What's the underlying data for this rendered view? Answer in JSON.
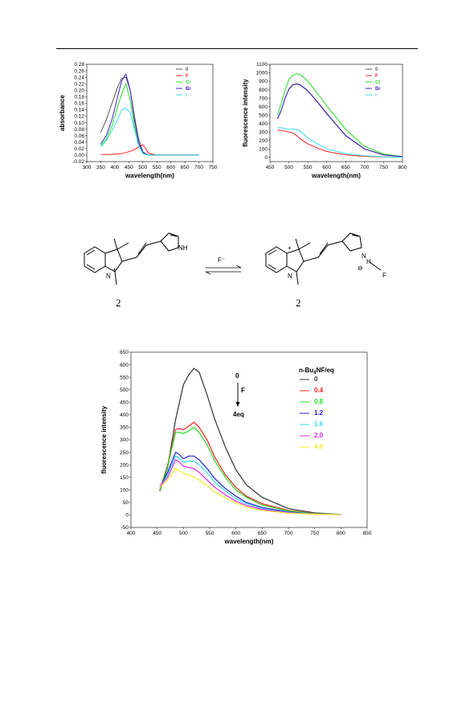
{
  "chart_data": [
    {
      "type": "line",
      "xlabel": "wavelength(nm)",
      "ylabel": "absorbance",
      "xlim": [
        300,
        750
      ],
      "ylim": [
        -0.02,
        0.28
      ],
      "xticks": [
        "300",
        "350",
        "400",
        "450",
        "500",
        "550",
        "600",
        "650",
        "700",
        "750"
      ],
      "yticks": [
        "-0.02",
        "0.00",
        "0.02",
        "0.04",
        "0.06",
        "0.08",
        "0.10",
        "0.12",
        "0.14",
        "0.16",
        "0.18",
        "0.20",
        "0.22",
        "0.24",
        "0.26",
        "0.28"
      ],
      "legend_position": "top-right",
      "series": [
        {
          "name": "0",
          "color": "#555555",
          "x": [
            350,
            370,
            390,
            410,
            425,
            440,
            455,
            470,
            485,
            500,
            520,
            550,
            600,
            650,
            700
          ],
          "y": [
            0.07,
            0.11,
            0.16,
            0.21,
            0.237,
            0.24,
            0.2,
            0.12,
            0.05,
            0.01,
            0.0,
            0.0,
            0.0,
            0.0,
            0.0
          ]
        },
        {
          "name": "F",
          "color": "#ff2222",
          "x": [
            350,
            380,
            400,
            420,
            440,
            460,
            480,
            490,
            500,
            510,
            520,
            550,
            600,
            650,
            700
          ],
          "y": [
            0.002,
            0.002,
            0.003,
            0.004,
            0.008,
            0.013,
            0.022,
            0.028,
            0.032,
            0.02,
            0.006,
            0.0,
            0.0,
            0.0,
            0.0
          ]
        },
        {
          "name": "Cl",
          "color": "#22dd22",
          "x": [
            350,
            370,
            390,
            410,
            425,
            440,
            455,
            470,
            485,
            500,
            520,
            550,
            600,
            650,
            700
          ],
          "y": [
            0.03,
            0.05,
            0.09,
            0.15,
            0.19,
            0.22,
            0.17,
            0.09,
            0.03,
            0.005,
            0.0,
            0.0,
            0.0,
            0.0,
            0.0
          ]
        },
        {
          "name": "Br",
          "color": "#4422cc",
          "x": [
            350,
            370,
            390,
            410,
            425,
            440,
            455,
            470,
            485,
            500,
            520,
            550,
            600,
            650,
            700
          ],
          "y": [
            0.035,
            0.06,
            0.11,
            0.18,
            0.23,
            0.25,
            0.2,
            0.11,
            0.04,
            0.008,
            0.0,
            0.0,
            0.0,
            0.0,
            0.0
          ]
        },
        {
          "name": "I",
          "color": "#33ddee",
          "x": [
            350,
            370,
            390,
            410,
            425,
            440,
            455,
            470,
            485,
            500,
            520,
            550,
            600,
            650,
            700
          ],
          "y": [
            0.025,
            0.045,
            0.075,
            0.11,
            0.14,
            0.145,
            0.13,
            0.08,
            0.03,
            0.005,
            0.0,
            0.0,
            0.0,
            0.0,
            0.0
          ]
        }
      ]
    },
    {
      "type": "line",
      "xlabel": "wavelength(nm)",
      "ylabel": "fluorescence intensity",
      "xlim": [
        450,
        800
      ],
      "ylim": [
        -50,
        1100
      ],
      "xticks": [
        "450",
        "500",
        "550",
        "600",
        "650",
        "700",
        "750",
        "800"
      ],
      "yticks": [
        "0",
        "100",
        "200",
        "300",
        "400",
        "500",
        "600",
        "700",
        "800",
        "900",
        "1000",
        "1100"
      ],
      "legend_position": "top-right",
      "series": [
        {
          "name": "0",
          "color": "#555555",
          "x": [
            470,
            480,
            490,
            500,
            510,
            520,
            530,
            550,
            575,
            600,
            650,
            700,
            750,
            800
          ],
          "y": [
            460,
            560,
            700,
            810,
            860,
            870,
            860,
            790,
            660,
            520,
            260,
            100,
            30,
            10
          ]
        },
        {
          "name": "F",
          "color": "#ff2222",
          "x": [
            470,
            480,
            490,
            500,
            510,
            520,
            530,
            550,
            575,
            600,
            650,
            700,
            750,
            800
          ],
          "y": [
            320,
            320,
            310,
            300,
            290,
            260,
            220,
            160,
            110,
            70,
            30,
            12,
            5,
            2
          ]
        },
        {
          "name": "Cl",
          "color": "#22dd22",
          "x": [
            470,
            480,
            490,
            500,
            510,
            520,
            530,
            550,
            575,
            600,
            650,
            700,
            750,
            800
          ],
          "y": [
            500,
            640,
            800,
            920,
            970,
            990,
            980,
            900,
            760,
            610,
            330,
            130,
            40,
            10
          ]
        },
        {
          "name": "Br",
          "color": "#4422cc",
          "x": [
            470,
            480,
            490,
            500,
            510,
            520,
            530,
            550,
            575,
            600,
            650,
            700,
            750,
            800
          ],
          "y": [
            455,
            555,
            700,
            805,
            855,
            865,
            855,
            785,
            655,
            515,
            255,
            98,
            28,
            9
          ]
        },
        {
          "name": "I",
          "color": "#33ddee",
          "x": [
            470,
            480,
            490,
            500,
            510,
            520,
            530,
            550,
            575,
            600,
            650,
            700,
            750,
            800
          ],
          "y": [
            350,
            350,
            340,
            330,
            335,
            330,
            310,
            230,
            160,
            100,
            45,
            18,
            6,
            2
          ]
        }
      ]
    },
    {
      "type": "line",
      "xlabel": "wavelength(nm)",
      "ylabel": "fluorescence intensity",
      "xlim": [
        400,
        850
      ],
      "ylim": [
        -50,
        650
      ],
      "xticks": [
        "400",
        "450",
        "500",
        "550",
        "600",
        "650",
        "700",
        "750",
        "800",
        "850"
      ],
      "yticks": [
        "-50",
        "0",
        "50",
        "100",
        "150",
        "200",
        "250",
        "300",
        "350",
        "400",
        "450",
        "500",
        "550",
        "600",
        "650"
      ],
      "legend_position": "top-right",
      "legend_title": "n-Bu4NF/eq",
      "annotation": {
        "top": "0",
        "label": "F",
        "bottom": "4eq"
      },
      "series": [
        {
          "name": "0",
          "color": "#333333",
          "x": [
            455,
            470,
            485,
            500,
            510,
            520,
            530,
            545,
            560,
            580,
            600,
            620,
            650,
            700,
            750,
            800
          ],
          "y": [
            95,
            190,
            380,
            520,
            560,
            585,
            570,
            480,
            380,
            270,
            180,
            120,
            70,
            25,
            8,
            2
          ]
        },
        {
          "name": "0.4",
          "color": "#ff2222",
          "x": [
            455,
            470,
            485,
            490,
            500,
            510,
            520,
            530,
            545,
            560,
            580,
            600,
            620,
            650,
            700,
            750,
            800
          ],
          "y": [
            100,
            200,
            340,
            345,
            340,
            355,
            370,
            350,
            300,
            230,
            160,
            110,
            75,
            45,
            18,
            6,
            2
          ]
        },
        {
          "name": "0.8",
          "color": "#22dd22",
          "x": [
            455,
            470,
            485,
            490,
            500,
            510,
            520,
            530,
            545,
            560,
            580,
            600,
            620,
            650,
            700,
            750,
            800
          ],
          "y": [
            100,
            195,
            330,
            330,
            325,
            335,
            350,
            330,
            280,
            215,
            150,
            100,
            70,
            40,
            16,
            5,
            2
          ]
        },
        {
          "name": "1.2",
          "color": "#2222cc",
          "x": [
            455,
            470,
            485,
            490,
            500,
            510,
            520,
            530,
            545,
            560,
            580,
            600,
            620,
            650,
            700,
            750,
            800
          ],
          "y": [
            110,
            170,
            250,
            245,
            225,
            235,
            235,
            220,
            185,
            145,
            105,
            75,
            50,
            30,
            12,
            4,
            2
          ]
        },
        {
          "name": "1.6",
          "color": "#33ddee",
          "x": [
            455,
            470,
            485,
            490,
            500,
            510,
            520,
            530,
            545,
            560,
            580,
            600,
            620,
            650,
            700,
            750,
            800
          ],
          "y": [
            110,
            160,
            235,
            230,
            210,
            215,
            215,
            200,
            170,
            130,
            95,
            65,
            45,
            25,
            10,
            4,
            2
          ]
        },
        {
          "name": "2.0",
          "color": "#ee22ee",
          "x": [
            455,
            470,
            485,
            490,
            500,
            510,
            520,
            530,
            545,
            560,
            580,
            600,
            620,
            650,
            700,
            750,
            800
          ],
          "y": [
            115,
            150,
            220,
            215,
            195,
            190,
            185,
            170,
            140,
            110,
            80,
            55,
            38,
            22,
            9,
            3,
            1
          ]
        },
        {
          "name": "4.0",
          "color": "#eeee22",
          "x": [
            455,
            470,
            485,
            490,
            500,
            510,
            520,
            530,
            545,
            560,
            580,
            600,
            620,
            650,
            700,
            750,
            800
          ],
          "y": [
            110,
            140,
            185,
            180,
            165,
            160,
            150,
            140,
            118,
            92,
            68,
            48,
            32,
            18,
            7,
            3,
            1
          ]
        }
      ]
    }
  ],
  "scheme": {
    "compound_left": "2",
    "compound_right": "2",
    "arrow_label": "F⁻",
    "atoms": {
      "n_plus_left": "N",
      "nh_left": "NH",
      "n_left": "N",
      "n_plus_right": "N",
      "n_right": "N",
      "nh_right": "N",
      "h_right": "H",
      "f_right": "F",
      "plus": "+",
      "minus": "⊖"
    }
  }
}
